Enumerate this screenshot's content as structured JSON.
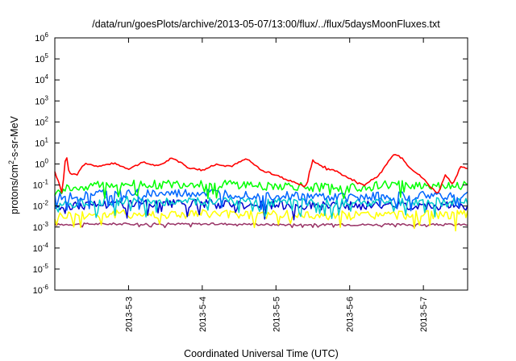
{
  "chart_data": {
    "type": "line",
    "title": "/data/run/goesPlots/archive/2013-05-07/13:00/flux/../flux/5daysMoonFluxes.txt",
    "xlabel": "Coordinated Universal Time (UTC)",
    "ylabel_parts": {
      "base": "protons/cm",
      "sup": "2",
      "rest": "-s-sr-MeV"
    },
    "yscale": "log",
    "ylim": [
      1e-06,
      1000000.0
    ],
    "xlim": [
      0.0,
      5.6
    ],
    "y_ticks": [
      {
        "exp": -6,
        "base": "10",
        "sup": "-6"
      },
      {
        "exp": -5,
        "base": "10",
        "sup": "-5"
      },
      {
        "exp": -4,
        "base": "10",
        "sup": "-4"
      },
      {
        "exp": -3,
        "base": "10",
        "sup": "-3"
      },
      {
        "exp": -2,
        "base": "10",
        "sup": "-2"
      },
      {
        "exp": -1,
        "base": "10",
        "sup": "-1"
      },
      {
        "exp": 0,
        "base": "10",
        "sup": "0"
      },
      {
        "exp": 1,
        "base": "10",
        "sup": "1"
      },
      {
        "exp": 2,
        "base": "10",
        "sup": "2"
      },
      {
        "exp": 3,
        "base": "10",
        "sup": "3"
      },
      {
        "exp": 4,
        "base": "10",
        "sup": "4"
      },
      {
        "exp": 5,
        "base": "10",
        "sup": "5"
      },
      {
        "exp": 6,
        "base": "10",
        "sup": "6"
      }
    ],
    "x_ticks": [
      {
        "value": 1.0,
        "label": "2013-5-3"
      },
      {
        "value": 2.0,
        "label": "2013-5-4"
      },
      {
        "value": 3.0,
        "label": "2013-5-5"
      },
      {
        "value": 4.0,
        "label": "2013-5-6"
      },
      {
        "value": 5.0,
        "label": "2013-5-7"
      }
    ],
    "grid": false,
    "legend": "none",
    "series": [
      {
        "color": "#ff0000",
        "x": [
          0.0,
          0.1,
          0.15,
          0.2,
          0.3,
          0.4,
          0.5,
          0.6,
          0.8,
          1.0,
          1.2,
          1.4,
          1.6,
          1.8,
          2.0,
          2.2,
          2.4,
          2.6,
          2.8,
          3.0,
          3.2,
          3.3,
          3.4,
          3.5,
          3.6,
          3.8,
          4.0,
          4.2,
          4.4,
          4.6,
          4.7,
          4.8,
          5.0,
          5.1,
          5.2,
          5.3,
          5.4,
          5.5,
          5.6
        ],
        "y": [
          0.45,
          0.04,
          3.5,
          0.35,
          0.3,
          1.0,
          0.9,
          0.8,
          1.1,
          0.6,
          1.2,
          0.8,
          2.0,
          0.7,
          0.5,
          1.0,
          0.8,
          1.8,
          0.5,
          0.3,
          0.15,
          0.12,
          0.08,
          1.5,
          0.9,
          0.5,
          0.2,
          0.1,
          0.3,
          3.0,
          2.0,
          0.8,
          0.2,
          0.08,
          0.04,
          0.3,
          0.1,
          0.7,
          0.8
        ]
      },
      {
        "color": "#00ff00",
        "x": [
          0.0,
          0.5,
          1.0,
          1.5,
          2.0,
          2.5,
          3.0,
          3.5,
          4.0,
          4.5,
          5.0,
          5.6
        ],
        "y": [
          0.05,
          0.1,
          0.11,
          0.1,
          0.12,
          0.1,
          0.09,
          0.08,
          0.07,
          0.1,
          0.1,
          0.1
        ]
      },
      {
        "color": "#0066ff",
        "x": [
          0.0,
          0.5,
          1.0,
          1.5,
          2.0,
          2.5,
          3.0,
          3.5,
          4.0,
          4.5,
          5.0,
          5.6
        ],
        "y": [
          0.025,
          0.035,
          0.04,
          0.035,
          0.04,
          0.035,
          0.03,
          0.028,
          0.025,
          0.03,
          0.03,
          0.03
        ]
      },
      {
        "color": "#00cccc",
        "x": [
          0.0,
          0.5,
          1.0,
          1.5,
          2.0,
          2.5,
          3.0,
          3.5,
          4.0,
          4.5,
          5.0,
          5.6
        ],
        "y": [
          0.012,
          0.016,
          0.018,
          0.016,
          0.018,
          0.016,
          0.015,
          0.014,
          0.013,
          0.015,
          0.015,
          0.015
        ]
      },
      {
        "color": "#0000cc",
        "x": [
          0.0,
          0.5,
          1.0,
          1.5,
          2.0,
          2.5,
          3.0,
          3.5,
          4.0,
          4.5,
          5.0,
          5.6
        ],
        "y": [
          0.009,
          0.012,
          0.013,
          0.012,
          0.013,
          0.012,
          0.011,
          0.011,
          0.01,
          0.011,
          0.011,
          0.01
        ]
      },
      {
        "color": "#ffff00",
        "x": [
          0.0,
          0.5,
          1.0,
          1.5,
          2.0,
          2.5,
          3.0,
          3.5,
          4.0,
          4.5,
          5.0,
          5.6
        ],
        "y": [
          0.0035,
          0.004,
          0.0042,
          0.004,
          0.0042,
          0.004,
          0.0038,
          0.0037,
          0.0036,
          0.0038,
          0.0038,
          0.0038
        ]
      },
      {
        "color": "#993366",
        "x": [
          0.0,
          0.5,
          1.0,
          1.5,
          2.0,
          2.5,
          3.0,
          3.5,
          4.0,
          4.5,
          5.0,
          5.6
        ],
        "y": [
          0.0013,
          0.0014,
          0.0014,
          0.0014,
          0.0014,
          0.0014,
          0.0013,
          0.0013,
          0.0013,
          0.0013,
          0.0013,
          0.0013
        ]
      }
    ]
  }
}
